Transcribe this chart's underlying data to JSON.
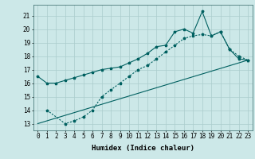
{
  "xlabel": "Humidex (Indice chaleur)",
  "background_color": "#cce8e8",
  "grid_color": "#aacccc",
  "line_color": "#006060",
  "xlim": [
    -0.5,
    23.5
  ],
  "ylim": [
    12.5,
    21.8
  ],
  "yticks": [
    13,
    14,
    15,
    16,
    17,
    18,
    19,
    20,
    21
  ],
  "xticks": [
    0,
    1,
    2,
    3,
    4,
    5,
    6,
    7,
    8,
    9,
    10,
    11,
    12,
    13,
    14,
    15,
    16,
    17,
    18,
    19,
    20,
    21,
    22,
    23
  ],
  "series1_x": [
    0,
    1,
    2,
    3,
    4,
    5,
    6,
    7,
    8,
    9,
    10,
    11,
    12,
    13,
    14,
    15,
    16,
    17,
    18,
    19,
    20,
    21,
    22,
    23
  ],
  "series1_y": [
    16.5,
    16.0,
    16.0,
    16.2,
    16.4,
    16.6,
    16.8,
    17.0,
    17.1,
    17.2,
    17.5,
    17.8,
    18.2,
    18.7,
    18.8,
    19.8,
    20.0,
    19.7,
    21.3,
    19.5,
    19.8,
    18.5,
    17.8,
    17.7
  ],
  "series2_x": [
    1,
    3,
    4,
    5,
    6,
    7,
    8,
    9,
    10,
    11,
    12,
    13,
    14,
    15,
    16,
    17,
    18,
    19,
    20,
    21,
    22,
    23
  ],
  "series2_y": [
    14.0,
    13.0,
    13.2,
    13.5,
    14.0,
    15.0,
    15.5,
    16.0,
    16.5,
    17.0,
    17.3,
    17.8,
    18.3,
    18.8,
    19.3,
    19.5,
    19.6,
    19.5,
    19.8,
    18.5,
    18.0,
    17.7
  ],
  "series3_x": [
    0,
    23
  ],
  "series3_y": [
    13.0,
    17.7
  ],
  "font_size": 5.5,
  "xlabel_fontsize": 6.5
}
